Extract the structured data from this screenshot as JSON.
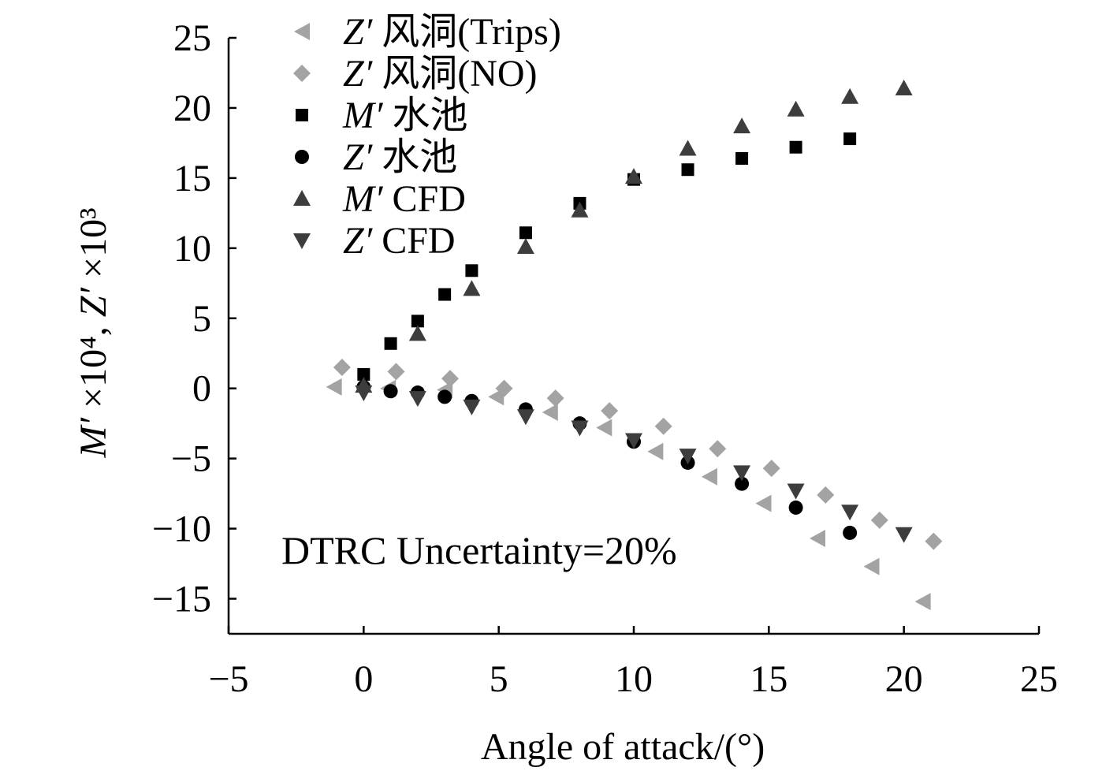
{
  "chart_data": {
    "type": "scatter",
    "title": "",
    "xlabel": "Angle of attack/(°)",
    "ylabel": "M′ ×10⁴, Z′ ×10³",
    "xlim": [
      -5,
      25
    ],
    "ylim": [
      -17.5,
      25
    ],
    "xticks": [
      -5,
      0,
      5,
      10,
      15,
      20,
      25
    ],
    "xtick_labels": [
      "−5",
      "0",
      "5",
      "10",
      "15",
      "20",
      "25"
    ],
    "yticks": [
      25,
      20,
      15,
      10,
      5,
      0,
      -5,
      -10,
      -15
    ],
    "ytick_labels": [
      "25",
      "20",
      "15",
      "10",
      "5",
      "0",
      "−5",
      "−10",
      "−15"
    ],
    "grid": false,
    "legend_position": "top-left",
    "annotations": [
      {
        "text": "DTRC Uncertainty=20%"
      }
    ],
    "series": [
      {
        "name": "Z′ 风洞(Trips)",
        "marker": "triangle-left",
        "color": "#a3a3a3",
        "x": [
          -1.1,
          0.9,
          3.0,
          4.9,
          6.9,
          8.9,
          10.8,
          12.8,
          14.8,
          16.8,
          18.8,
          20.7
        ],
        "y": [
          0.1,
          0.0,
          -0.1,
          -0.6,
          -1.7,
          -2.8,
          -4.5,
          -6.3,
          -8.2,
          -10.7,
          -12.7,
          -15.2
        ]
      },
      {
        "name": "Z′ 风洞(NO)",
        "marker": "diamond",
        "color": "#a3a3a3",
        "x": [
          -0.8,
          1.2,
          3.2,
          5.2,
          7.1,
          9.1,
          11.1,
          13.1,
          15.1,
          17.1,
          19.1,
          21.1
        ],
        "y": [
          1.5,
          1.2,
          0.7,
          0.0,
          -0.7,
          -1.6,
          -2.7,
          -4.3,
          -5.7,
          -7.6,
          -9.4,
          -10.9
        ]
      },
      {
        "name": "M′ 水池",
        "marker": "square",
        "color": "#000000",
        "x": [
          0,
          1,
          2,
          3,
          4,
          6,
          8,
          10,
          12,
          14,
          16,
          18
        ],
        "y": [
          1.0,
          3.2,
          4.8,
          6.7,
          8.4,
          11.1,
          13.2,
          14.9,
          15.6,
          16.4,
          17.2,
          17.8
        ]
      },
      {
        "name": "Z′ 水池",
        "marker": "circle",
        "color": "#000000",
        "x": [
          0,
          1,
          2,
          3,
          4,
          6,
          8,
          10,
          12,
          14,
          16,
          18
        ],
        "y": [
          0.1,
          -0.2,
          -0.3,
          -0.6,
          -0.9,
          -1.5,
          -2.5,
          -3.8,
          -5.3,
          -6.8,
          -8.5,
          -10.3
        ]
      },
      {
        "name": "M′ CFD",
        "marker": "triangle-up",
        "color": "#3d3d3d",
        "x": [
          0,
          2,
          4,
          6,
          8,
          10,
          12,
          14,
          16,
          18,
          20
        ],
        "y": [
          0.2,
          3.9,
          7.1,
          10.1,
          12.7,
          15.1,
          17.1,
          18.7,
          19.9,
          20.8,
          21.4
        ]
      },
      {
        "name": "Z′ CFD",
        "marker": "triangle-down",
        "color": "#3d3d3d",
        "x": [
          0,
          2,
          4,
          6,
          8,
          10,
          12,
          14,
          16,
          18,
          20
        ],
        "y": [
          -0.3,
          -0.7,
          -1.3,
          -2.0,
          -2.8,
          -3.7,
          -4.8,
          -6.0,
          -7.3,
          -8.8,
          -10.4
        ]
      }
    ]
  }
}
